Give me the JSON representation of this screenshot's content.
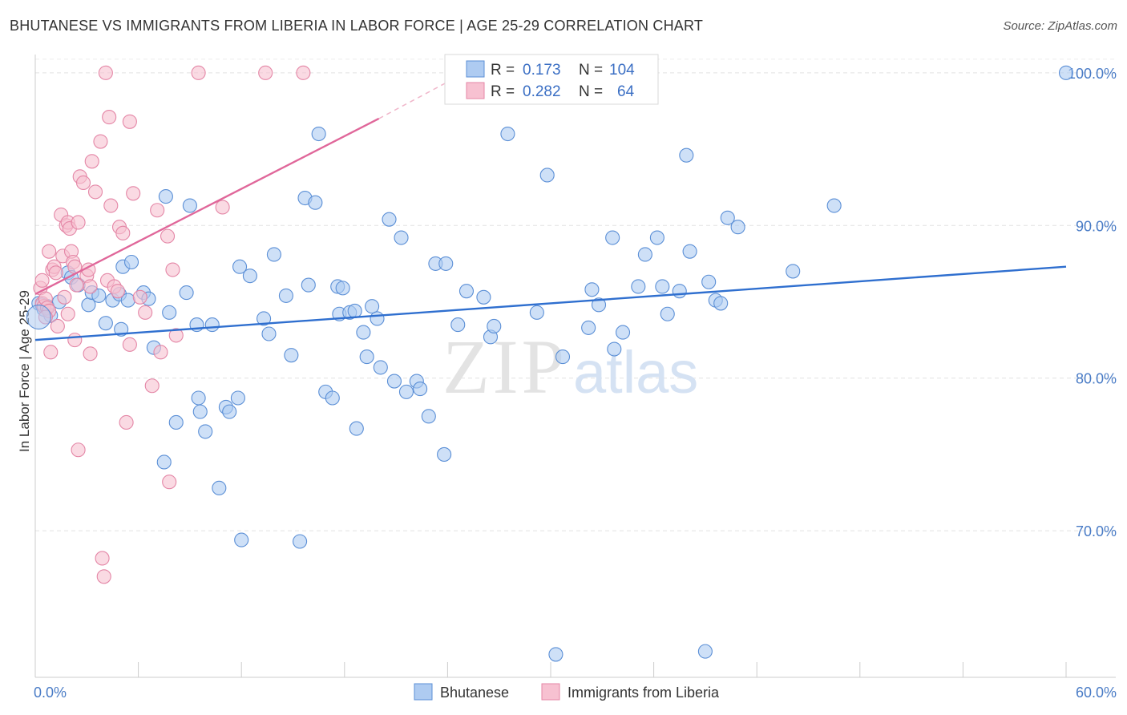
{
  "header": {
    "title": "BHUTANESE VS IMMIGRANTS FROM LIBERIA IN LABOR FORCE | AGE 25-29 CORRELATION CHART",
    "source": "Source: ZipAtlas.com"
  },
  "watermark": {
    "zip": "ZIP",
    "atlas": "atlas"
  },
  "legend": {
    "r_label": "R =",
    "n_label": "N =",
    "rows": [
      {
        "r": "0.173",
        "n": "104",
        "fill": "#aecbf1",
        "stroke": "#5b8fd6"
      },
      {
        "r": "0.282",
        "n": "64",
        "fill": "#f7c1d1",
        "stroke": "#e486a6"
      }
    ]
  },
  "bottom_legend": [
    {
      "label": "Bhutanese",
      "fill": "#aecbf1",
      "stroke": "#5b8fd6"
    },
    {
      "label": "Immigrants from Liberia",
      "fill": "#f7c1d1",
      "stroke": "#e486a6"
    }
  ],
  "chart_data": {
    "type": "scatter",
    "title": "BHUTANESE VS IMMIGRANTS FROM LIBERIA IN LABOR FORCE | AGE 25-29 CORRELATION CHART",
    "xlabel": "",
    "ylabel": "In Labor Force | Age 25-29",
    "xlim": [
      0,
      60
    ],
    "ylim": [
      60.4,
      101.2
    ],
    "x_tick_labels": [
      "0.0%",
      "60.0%"
    ],
    "y_ticks": [
      70,
      80,
      90,
      100
    ],
    "y_tick_labels": [
      "70.0%",
      "80.0%",
      "90.0%",
      "100.0%"
    ],
    "grid": true,
    "legend_position": "top-center",
    "series": [
      {
        "name": "Bhutanese",
        "color": "#5b8fd6",
        "fill": "#aecbf1",
        "trend": {
          "x0": 0,
          "y0": 82.5,
          "x1": 60,
          "y1": 87.3
        },
        "points": [
          [
            0.2,
            84.9
          ],
          [
            0.4,
            84.8
          ],
          [
            0.5,
            84.5
          ],
          [
            0.7,
            84.7
          ],
          [
            0.9,
            84.1
          ],
          [
            1.4,
            85.0
          ],
          [
            1.9,
            86.9
          ],
          [
            2.1,
            86.6
          ],
          [
            2.5,
            86.1
          ],
          [
            3.1,
            84.8
          ],
          [
            3.3,
            85.6
          ],
          [
            3.7,
            85.4
          ],
          [
            4.1,
            83.6
          ],
          [
            4.5,
            85.1
          ],
          [
            4.9,
            85.5
          ],
          [
            5.0,
            83.2
          ],
          [
            5.1,
            87.3
          ],
          [
            5.4,
            85.1
          ],
          [
            5.6,
            87.6
          ],
          [
            6.3,
            85.6
          ],
          [
            6.6,
            85.2
          ],
          [
            6.9,
            82.0
          ],
          [
            7.5,
            74.5
          ],
          [
            7.6,
            91.9
          ],
          [
            7.8,
            84.3
          ],
          [
            8.2,
            77.1
          ],
          [
            8.8,
            85.6
          ],
          [
            9.0,
            91.3
          ],
          [
            9.4,
            83.5
          ],
          [
            9.5,
            78.7
          ],
          [
            9.6,
            77.8
          ],
          [
            9.9,
            76.5
          ],
          [
            10.3,
            83.5
          ],
          [
            10.7,
            72.8
          ],
          [
            11.1,
            78.1
          ],
          [
            11.3,
            77.8
          ],
          [
            11.8,
            78.7
          ],
          [
            11.9,
            87.3
          ],
          [
            12.0,
            69.4
          ],
          [
            12.5,
            86.7
          ],
          [
            13.3,
            83.9
          ],
          [
            13.6,
            82.9
          ],
          [
            13.9,
            88.1
          ],
          [
            14.6,
            85.4
          ],
          [
            14.9,
            81.5
          ],
          [
            15.4,
            69.3
          ],
          [
            15.7,
            91.8
          ],
          [
            15.9,
            86.1
          ],
          [
            16.3,
            91.5
          ],
          [
            16.5,
            96.0
          ],
          [
            16.9,
            79.1
          ],
          [
            17.3,
            78.7
          ],
          [
            17.6,
            86.0
          ],
          [
            17.9,
            85.9
          ],
          [
            17.7,
            84.2
          ],
          [
            18.3,
            84.3
          ],
          [
            18.6,
            84.4
          ],
          [
            18.7,
            76.7
          ],
          [
            19.1,
            83.0
          ],
          [
            19.3,
            81.4
          ],
          [
            19.6,
            84.7
          ],
          [
            19.9,
            83.9
          ],
          [
            20.1,
            80.7
          ],
          [
            20.6,
            90.4
          ],
          [
            20.9,
            79.8
          ],
          [
            21.3,
            89.2
          ],
          [
            21.6,
            79.1
          ],
          [
            22.2,
            79.8
          ],
          [
            22.4,
            79.3
          ],
          [
            22.9,
            77.5
          ],
          [
            23.3,
            87.5
          ],
          [
            23.9,
            87.5
          ],
          [
            23.8,
            75.0
          ],
          [
            24.6,
            83.5
          ],
          [
            25.1,
            85.7
          ],
          [
            26.1,
            85.3
          ],
          [
            26.5,
            82.7
          ],
          [
            26.7,
            83.4
          ],
          [
            27.5,
            96.0
          ],
          [
            29.2,
            84.3
          ],
          [
            29.8,
            93.3
          ],
          [
            30.3,
            61.9
          ],
          [
            30.7,
            81.4
          ],
          [
            32.2,
            83.3
          ],
          [
            32.4,
            85.8
          ],
          [
            32.8,
            84.8
          ],
          [
            33.6,
            89.2
          ],
          [
            33.7,
            81.9
          ],
          [
            34.2,
            83.0
          ],
          [
            35.1,
            86.0
          ],
          [
            35.5,
            88.1
          ],
          [
            36.2,
            89.2
          ],
          [
            36.5,
            86.0
          ],
          [
            36.8,
            84.2
          ],
          [
            37.5,
            85.7
          ],
          [
            37.9,
            94.6
          ],
          [
            38.1,
            88.3
          ],
          [
            39.0,
            62.1
          ],
          [
            39.2,
            86.3
          ],
          [
            39.6,
            85.1
          ],
          [
            39.9,
            84.9
          ],
          [
            40.3,
            90.5
          ],
          [
            40.9,
            89.9
          ],
          [
            44.1,
            87.0
          ],
          [
            46.5,
            91.3
          ],
          [
            60.0,
            100.0
          ]
        ]
      },
      {
        "name": "Immigrants from Liberia",
        "color": "#e486a6",
        "fill": "#f7c1d1",
        "trend": {
          "x0": 0,
          "y0": 85.5,
          "x1": 20,
          "y1": 97.0,
          "dash_x1": 24.5,
          "dash_y1": 99.7
        },
        "points": [
          [
            0.3,
            85.9
          ],
          [
            0.4,
            86.4
          ],
          [
            0.4,
            84.9
          ],
          [
            0.5,
            84.7
          ],
          [
            0.6,
            85.2
          ],
          [
            0.7,
            84.6
          ],
          [
            0.8,
            84.4
          ],
          [
            0.8,
            88.3
          ],
          [
            0.9,
            81.7
          ],
          [
            1.0,
            87.1
          ],
          [
            1.1,
            87.3
          ],
          [
            1.2,
            86.9
          ],
          [
            1.3,
            83.4
          ],
          [
            1.5,
            90.7
          ],
          [
            1.6,
            88.0
          ],
          [
            1.7,
            85.3
          ],
          [
            1.8,
            90.0
          ],
          [
            1.9,
            90.2
          ],
          [
            2.0,
            89.8
          ],
          [
            2.1,
            88.3
          ],
          [
            2.2,
            87.6
          ],
          [
            2.3,
            87.3
          ],
          [
            2.5,
            90.2
          ],
          [
            2.4,
            86.1
          ],
          [
            2.3,
            82.5
          ],
          [
            2.5,
            75.3
          ],
          [
            2.6,
            93.2
          ],
          [
            2.8,
            92.8
          ],
          [
            3.0,
            86.7
          ],
          [
            3.1,
            87.1
          ],
          [
            3.2,
            86.0
          ],
          [
            3.3,
            94.2
          ],
          [
            3.5,
            92.2
          ],
          [
            3.8,
            95.5
          ],
          [
            3.9,
            68.2
          ],
          [
            4.0,
            67.0
          ],
          [
            4.1,
            100.0
          ],
          [
            4.2,
            86.4
          ],
          [
            4.3,
            97.1
          ],
          [
            4.4,
            91.3
          ],
          [
            4.6,
            86.0
          ],
          [
            4.8,
            85.7
          ],
          [
            4.9,
            89.9
          ],
          [
            5.1,
            89.5
          ],
          [
            5.3,
            77.1
          ],
          [
            5.5,
            96.8
          ],
          [
            5.7,
            92.1
          ],
          [
            6.1,
            85.3
          ],
          [
            6.4,
            84.3
          ],
          [
            6.8,
            79.5
          ],
          [
            7.1,
            91.0
          ],
          [
            7.3,
            81.7
          ],
          [
            7.7,
            89.3
          ],
          [
            7.8,
            73.2
          ],
          [
            8.0,
            87.1
          ],
          [
            8.2,
            82.8
          ],
          [
            9.5,
            100.0
          ],
          [
            10.9,
            91.2
          ],
          [
            13.4,
            100.0
          ],
          [
            15.6,
            100.0
          ],
          [
            5.5,
            82.2
          ],
          [
            3.2,
            81.6
          ],
          [
            1.9,
            84.2
          ],
          [
            0.6,
            84.0
          ]
        ]
      }
    ]
  }
}
